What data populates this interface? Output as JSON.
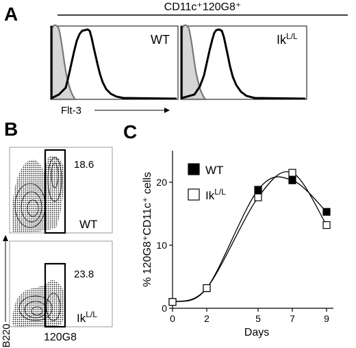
{
  "panel_a": {
    "letter": "A",
    "header": "CD11c⁺120G8⁺",
    "xlabel": "Flt-3",
    "histograms": [
      {
        "genotype_base": "WT",
        "genotype_sup": ""
      },
      {
        "genotype_base": "Ik",
        "genotype_sup": "L/L"
      }
    ]
  },
  "panel_b": {
    "letter": "B",
    "ylabel": "B220",
    "xlabel": "120G8",
    "plots": [
      {
        "percent": "18.6",
        "genotype_base": "WT",
        "genotype_sup": ""
      },
      {
        "percent": "23.8",
        "genotype_base": "Ik",
        "genotype_sup": "L/L"
      }
    ]
  },
  "panel_c": {
    "letter": "C"
  },
  "chart_data": {
    "type": "line",
    "xlabel": "Days",
    "ylabel": "% 120G8⁺CD11c⁺ cells",
    "xlim": [
      0,
      9.4
    ],
    "ylim": [
      0,
      25
    ],
    "x_ticks": [
      0,
      2,
      5,
      7,
      9
    ],
    "y_ticks": [
      0,
      10,
      20
    ],
    "legend_position": "top-left",
    "series": [
      {
        "name": "WT",
        "name_base": "WT",
        "name_sup": "",
        "marker": "filled-square",
        "color": "#000000",
        "x": [
          0,
          2,
          5,
          7,
          9
        ],
        "y": [
          1,
          3.2,
          18.8,
          20.3,
          15.3
        ]
      },
      {
        "name": "Ik L/L",
        "name_base": "Ik",
        "name_sup": "L/L",
        "marker": "open-square",
        "color": "#000000",
        "x": [
          0,
          2,
          5,
          7,
          9
        ],
        "y": [
          1,
          3.2,
          17.6,
          21.5,
          13.2
        ]
      }
    ]
  }
}
